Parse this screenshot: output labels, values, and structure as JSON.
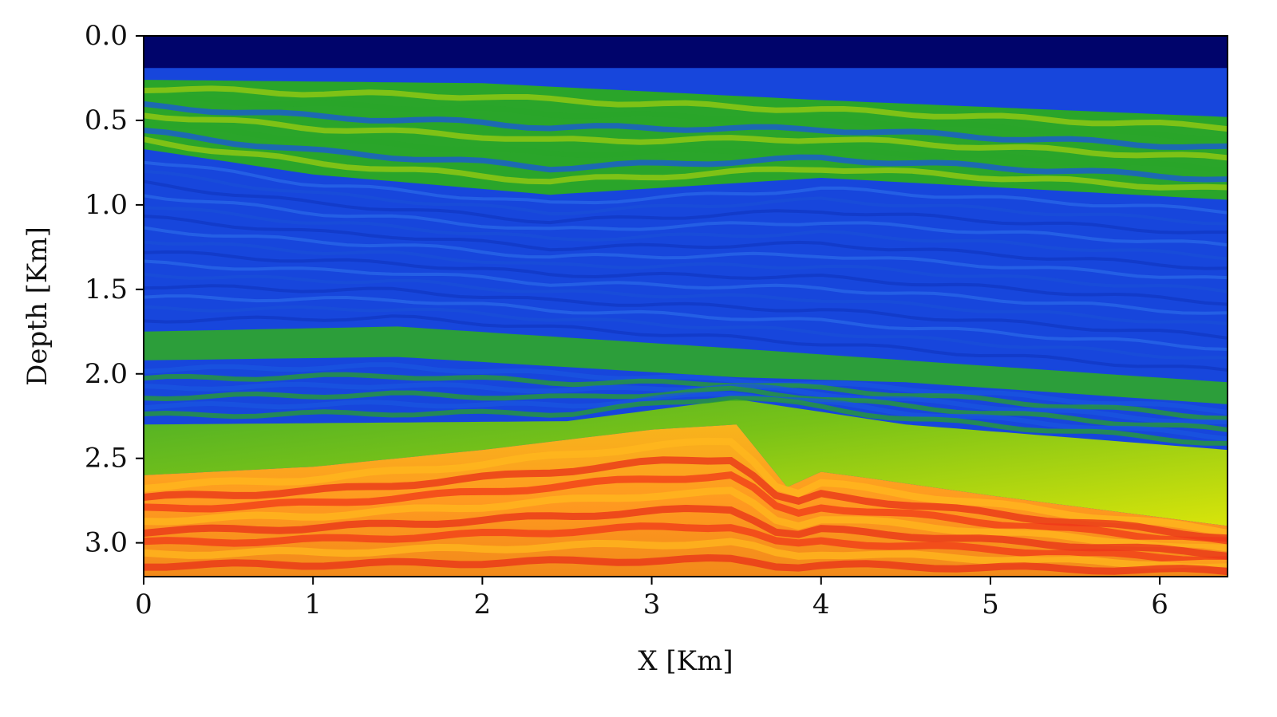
{
  "chart_data": {
    "type": "heatmap",
    "title": "",
    "xlabel": "X [Km]",
    "ylabel": "Depth [Km]",
    "xlim": [
      0,
      6.4
    ],
    "ylim": [
      0,
      3.2
    ],
    "y_inverted": true,
    "colormap": "jet",
    "x_ticks": [
      {
        "value": 0,
        "label": "0"
      },
      {
        "value": 1,
        "label": "1"
      },
      {
        "value": 2,
        "label": "2"
      },
      {
        "value": 3,
        "label": "3"
      },
      {
        "value": 4,
        "label": "4"
      },
      {
        "value": 5,
        "label": "5"
      },
      {
        "value": 6,
        "label": "6"
      }
    ],
    "y_ticks": [
      {
        "value": 0.0,
        "label": "0.0"
      },
      {
        "value": 0.5,
        "label": "0.5"
      },
      {
        "value": 1.0,
        "label": "1.0"
      },
      {
        "value": 1.5,
        "label": "1.5"
      },
      {
        "value": 2.0,
        "label": "2.0"
      },
      {
        "value": 2.5,
        "label": "2.5"
      },
      {
        "value": 3.0,
        "label": "3.0"
      }
    ],
    "layers": [
      {
        "id": "water",
        "color": "#00046b",
        "top": [
          [
            0,
            0
          ],
          [
            6.4,
            0
          ]
        ],
        "bottom": [
          [
            0,
            0.19
          ],
          [
            6.4,
            0.19
          ]
        ]
      },
      {
        "id": "shallow-green",
        "color": "#2aa52a",
        "top": [
          [
            0,
            0.26
          ],
          [
            2,
            0.28
          ],
          [
            4,
            0.38
          ],
          [
            6.4,
            0.48
          ]
        ],
        "bottom": [
          [
            0,
            0.67
          ],
          [
            1,
            0.82
          ],
          [
            2.4,
            0.94
          ],
          [
            4,
            0.84
          ],
          [
            6.4,
            0.97
          ]
        ]
      },
      {
        "id": "mid-green-band",
        "color": "#2c9e3a",
        "top": [
          [
            0,
            1.75
          ],
          [
            1.5,
            1.72
          ],
          [
            3.5,
            1.85
          ],
          [
            4.5,
            1.92
          ],
          [
            6.4,
            2.05
          ]
        ],
        "bottom": [
          [
            0,
            1.92
          ],
          [
            1.5,
            1.9
          ],
          [
            3.5,
            2.02
          ],
          [
            4.5,
            2.05
          ],
          [
            6.4,
            2.18
          ]
        ]
      },
      {
        "id": "lower-green-yellow",
        "color": "#6cc018",
        "top": [
          [
            0,
            2.3
          ],
          [
            2.5,
            2.28
          ],
          [
            3.5,
            2.15
          ],
          [
            4.5,
            2.3
          ],
          [
            6.4,
            2.45
          ]
        ],
        "bottom": [
          [
            0,
            2.6
          ],
          [
            1,
            2.55
          ],
          [
            2,
            2.45
          ],
          [
            3,
            2.33
          ],
          [
            3.5,
            2.3
          ],
          [
            3.8,
            2.67
          ],
          [
            4,
            2.58
          ],
          [
            4.3,
            2.62
          ],
          [
            5,
            2.72
          ],
          [
            6.4,
            2.9
          ]
        ]
      },
      {
        "id": "deep-orange",
        "color": "#f3a01e",
        "top": [
          [
            0,
            2.6
          ],
          [
            1,
            2.55
          ],
          [
            2,
            2.45
          ],
          [
            3,
            2.33
          ],
          [
            3.5,
            2.3
          ],
          [
            3.8,
            2.67
          ],
          [
            4,
            2.58
          ],
          [
            4.3,
            2.62
          ],
          [
            5,
            2.72
          ],
          [
            6.4,
            2.9
          ]
        ],
        "bottom": [
          [
            0,
            3.2
          ],
          [
            6.4,
            3.2
          ]
        ]
      }
    ]
  }
}
